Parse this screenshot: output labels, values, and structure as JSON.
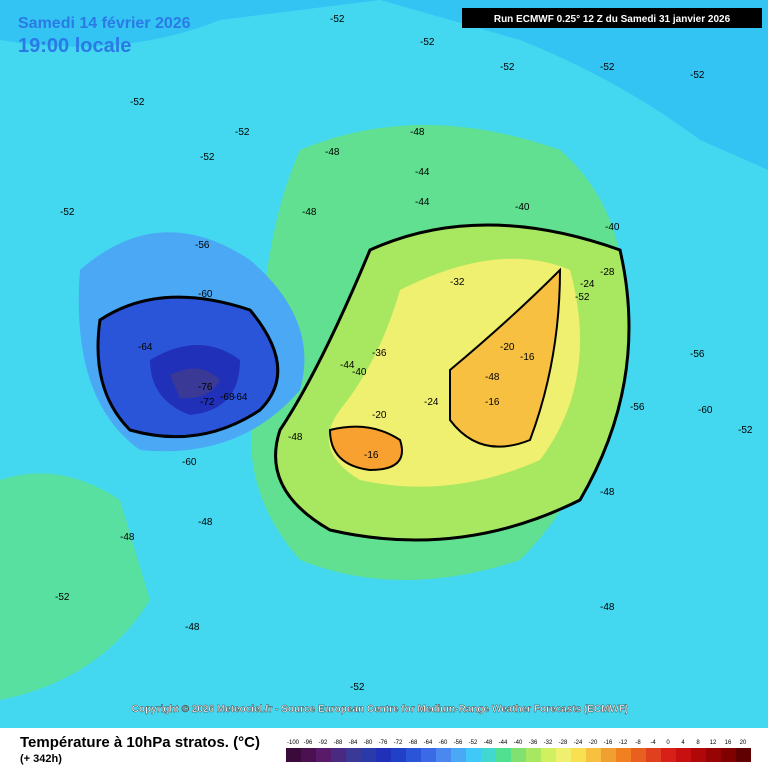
{
  "header": {
    "date": "Samedi 14 février 2026",
    "time": "19:00 locale",
    "run": "Run ECMWF 0.25° 12 Z du Samedi 31 janvier 2026"
  },
  "copyright": "Copyright © 2026 Meteociel.fr - Source European Centre for Medium-Range Weather Forecasts (ECMWF)",
  "footer": {
    "title": "Température à 10hPa stratos. (°C)",
    "lead": "(+ 342h)"
  },
  "colorbar": {
    "ticks": [
      -100,
      -96,
      -92,
      -88,
      -84,
      -80,
      -76,
      -72,
      -68,
      -64,
      -60,
      -56,
      -52,
      -48,
      -44,
      -40,
      -36,
      -32,
      -28,
      -24,
      -20,
      -16,
      -12,
      -8,
      -4,
      0,
      4,
      8,
      12,
      16,
      20
    ],
    "colors": [
      "#3a0a3a",
      "#4b1050",
      "#5a1a6a",
      "#4a2a80",
      "#3a3a96",
      "#2a3aa8",
      "#2030b8",
      "#2040c8",
      "#2a55d8",
      "#3a6ae6",
      "#4a88f0",
      "#4aa8f5",
      "#40c8f8",
      "#40d8d0",
      "#50e090",
      "#80e070",
      "#a8e860",
      "#d0f060",
      "#f0f070",
      "#f8e050",
      "#f8c040",
      "#f0a030",
      "#f08020",
      "#e86020",
      "#e04020",
      "#d82018",
      "#c81010",
      "#b00808",
      "#980404",
      "#800000",
      "#600000"
    ]
  },
  "map": {
    "labels": [
      "-52",
      "-52",
      "-52",
      "-52",
      "-52",
      "-48",
      "-52",
      "-52",
      "-52",
      "-52",
      "-48",
      "-48",
      "-44",
      "-44",
      "-40",
      "-40",
      "-48",
      "-56",
      "-60",
      "-64",
      "-76",
      "-72",
      "-68",
      "-64",
      "-60",
      "-32",
      "-28",
      "-24",
      "-20",
      "-16",
      "-16",
      "-24",
      "-20",
      "-16",
      "-36",
      "-40",
      "-44",
      "-48",
      "-52",
      "-56",
      "-56",
      "-60",
      "-48",
      "-48",
      "-52",
      "-48",
      "-52",
      "-48",
      "-48",
      "-52"
    ]
  }
}
